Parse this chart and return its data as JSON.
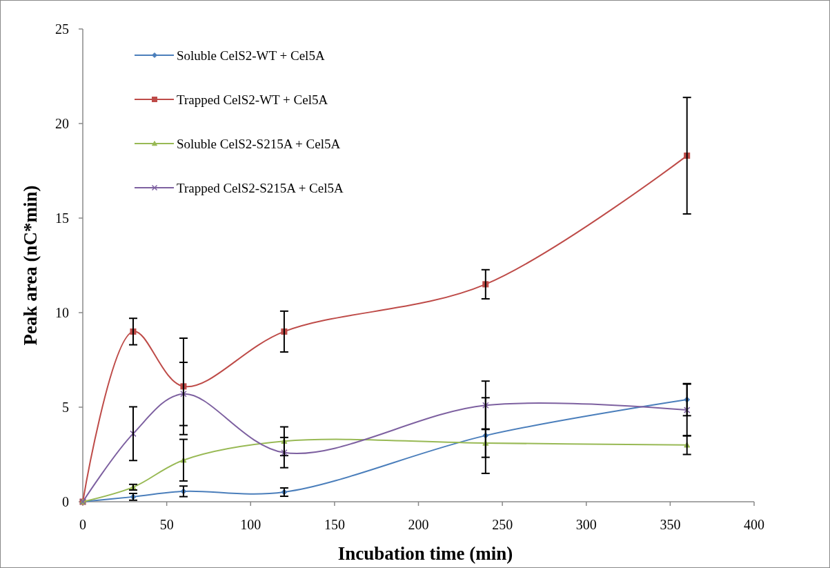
{
  "chart_data": {
    "type": "line",
    "xlabel": "Incubation time (min)",
    "ylabel": "Peak area (nC*min)",
    "x": [
      0,
      30,
      60,
      120,
      240,
      360
    ],
    "xlim": [
      0,
      400
    ],
    "xticks": [
      0,
      50,
      100,
      150,
      200,
      250,
      300,
      350,
      400
    ],
    "ylim": [
      0,
      25
    ],
    "yticks": [
      0,
      5,
      10,
      15,
      20,
      25
    ],
    "grid": false,
    "legend": "top left",
    "line_style": "solid",
    "series": [
      {
        "name": "Soluble CelS2-WT + Cel5A",
        "color": "#4a7ebb",
        "marker": "diamond",
        "values": [
          0,
          0.26,
          0.55,
          0.51,
          3.5,
          5.4
        ],
        "errors": [
          null,
          0.18,
          0.28,
          0.22,
          2.0,
          0.85
        ]
      },
      {
        "name": "Trapped CelS2-WT + Cel5A",
        "color": "#be4b48",
        "marker": "square",
        "values": [
          0,
          9.0,
          6.1,
          9.0,
          11.5,
          18.3
        ],
        "errors": [
          null,
          0.7,
          2.55,
          1.08,
          0.77,
          3.08
        ]
      },
      {
        "name": "Soluble CelS2-S215A + Cel5A",
        "color": "#98b954",
        "marker": "triangle",
        "values": [
          0,
          0.77,
          2.2,
          3.2,
          3.1,
          3.0
        ],
        "errors": [
          null,
          0.15,
          1.1,
          0.76,
          0.75,
          0.5
        ]
      },
      {
        "name": "Trapped CelS2-S215A + Cel5A",
        "color": "#7d60a0",
        "marker": "cross",
        "values": [
          0,
          3.6,
          5.7,
          2.6,
          5.1,
          4.85
        ],
        "errors": [
          null,
          1.42,
          1.67,
          0.8,
          1.28,
          1.37
        ]
      }
    ]
  }
}
